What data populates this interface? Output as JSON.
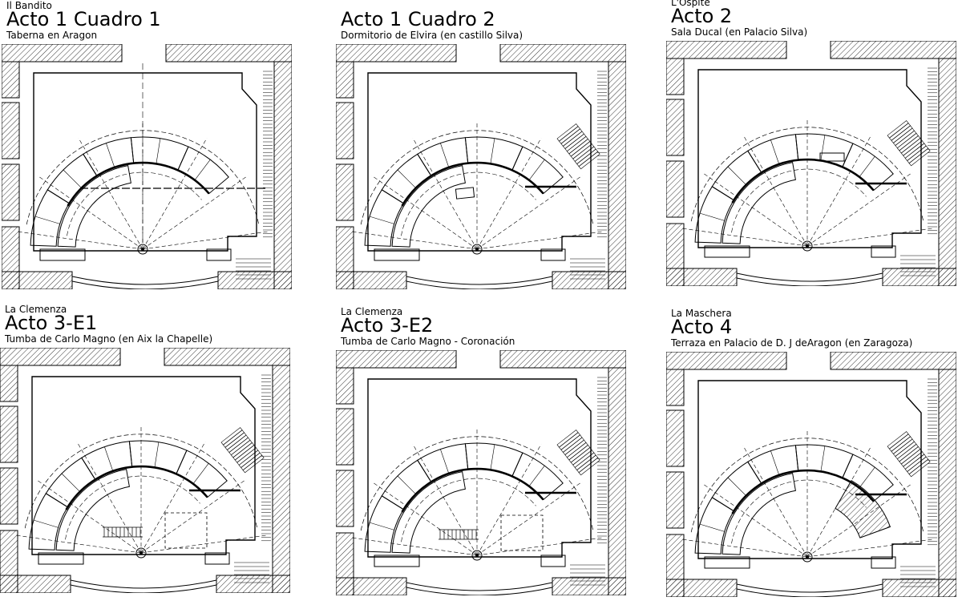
{
  "panels": [
    {
      "opera": "Il Bandito",
      "act": "Acto 1 Cuadro 1",
      "scene": "Taberna en Aragon"
    },
    {
      "opera": "",
      "act": "Acto 1 Cuadro 2",
      "scene": "Dormitorio de Elvira (en castillo Silva)"
    },
    {
      "opera": "L'Ospite",
      "act": "Acto 2",
      "scene": "Sala Ducal (en Palacio Silva)"
    },
    {
      "opera": "La Clemenza",
      "act": "Acto 3-E1",
      "scene": "Tumba de Carlo Magno (en Aix la Chapelle)"
    },
    {
      "opera": "La Clemenza",
      "act": "Acto 3-E2",
      "scene": "Tumba de Carlo Magno - Coronación"
    },
    {
      "opera": "La Maschera",
      "act": "Acto 4",
      "scene": "Terraza en Palacio de D. J deAragon (en Zaragoza)"
    }
  ],
  "colors": {
    "line": "#000000",
    "background": "#ffffff"
  }
}
